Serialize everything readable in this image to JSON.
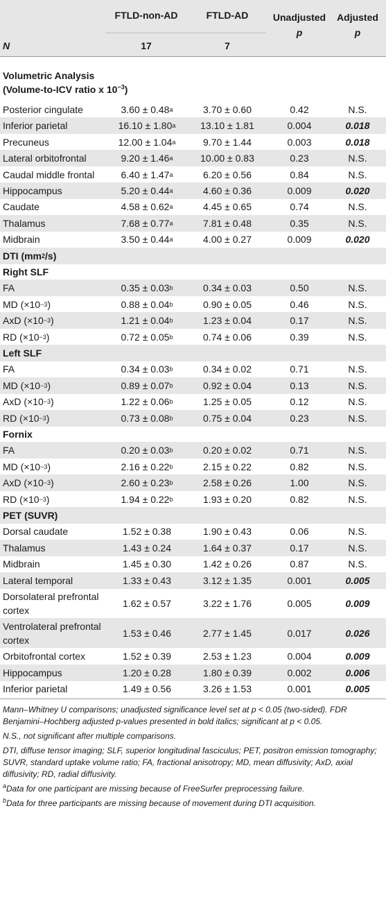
{
  "header": {
    "col1": "FTLD-non-AD",
    "col2": "FTLD-AD",
    "col3_line1": "Unadjusted",
    "col3_line2": "p",
    "col4_line1": "Adjusted",
    "col4_line2": "p",
    "n_label": "N",
    "n1": "17",
    "n2": "7"
  },
  "sections": {
    "vol_title": "Volumetric Analysis",
    "vol_sub_pre": "(Volume-to-ICV ratio x 10",
    "vol_sub_exp": "−3",
    "vol_sub_post": ")",
    "dti_pre": "DTI (mm",
    "dti_exp": "2",
    "dti_post": "/s)",
    "right_slf": "Right SLF",
    "left_slf": "Left SLF",
    "fornix": "Fornix",
    "pet": "PET (SUVR)"
  },
  "rows": [
    {
      "label": "Posterior cingulate",
      "a": "3.60 ± 0.48",
      "a_sup": "a",
      "b": "3.70 ± 0.60",
      "u": "0.42",
      "adj": "N.S."
    },
    {
      "label": "Inferior parietal",
      "a": "16.10 ± 1.80",
      "a_sup": "a",
      "b": "13.10 ± 1.81",
      "u": "0.004",
      "adj": "0.018"
    },
    {
      "label": "Precuneus",
      "a": "12.00 ± 1.04",
      "a_sup": "a",
      "b": "9.70 ± 1.44",
      "u": "0.003",
      "adj": "0.018"
    },
    {
      "label": "Lateral orbitofrontal",
      "a": "9.20 ± 1.46",
      "a_sup": "a",
      "b": "10.00 ± 0.83",
      "u": "0.23",
      "adj": "N.S."
    },
    {
      "label": "Caudal middle frontal",
      "a": "6.40 ± 1.47",
      "a_sup": "a",
      "b": "6.20 ± 0.56",
      "u": "0.84",
      "adj": "N.S."
    },
    {
      "label": "Hippocampus",
      "a": "5.20 ± 0.44",
      "a_sup": "a",
      "b": "4.60 ± 0.36",
      "u": "0.009",
      "adj": "0.020"
    },
    {
      "label": "Caudate",
      "a": "4.58 ± 0.62",
      "a_sup": "a",
      "b": "4.45 ± 0.65",
      "u": "0.74",
      "adj": "N.S."
    },
    {
      "label": "Thalamus",
      "a": "7.68 ± 0.77",
      "a_sup": "a",
      "b": "7.81 ± 0.48",
      "u": "0.35",
      "adj": "N.S."
    },
    {
      "label": "Midbrain",
      "a": "3.50 ± 0.44",
      "a_sup": "a",
      "b": "4.00 ± 0.27",
      "u": "0.009",
      "adj": "0.020"
    },
    {
      "label": "FA",
      "a": "0.35 ± 0.03",
      "a_sup": "b",
      "b": "0.34 ± 0.03",
      "u": "0.50",
      "adj": "N.S."
    },
    {
      "label": "MD (×10",
      "label_exp": "−3",
      "label_post": ")",
      "a": "0.88 ± 0.04",
      "a_sup": "b",
      "b": "0.90 ± 0.05",
      "u": "0.46",
      "adj": "N.S."
    },
    {
      "label": "AxD (×10",
      "label_exp": "−3",
      "label_post": ")",
      "a": "1.21 ± 0.04",
      "a_sup": "b",
      "b": "1.23 ± 0.04",
      "u": "0.17",
      "adj": "N.S."
    },
    {
      "label": "RD (×10",
      "label_exp": "−3",
      "label_post": ")",
      "a": "0.72 ± 0.05",
      "a_sup": "b",
      "b": "0.74 ± 0.06",
      "u": "0.39",
      "adj": "N.S."
    },
    {
      "label": "FA",
      "a": "0.34 ± 0.03",
      "a_sup": "b",
      "b": "0.34 ± 0.02",
      "u": "0.71",
      "adj": "N.S."
    },
    {
      "label": "MD (×10",
      "label_exp": "−3",
      "label_post": ")",
      "a": "0.89 ± 0.07",
      "a_sup": "b",
      "b": "0.92 ± 0.04",
      "u": "0.13",
      "adj": "N.S."
    },
    {
      "label": "AxD (×10",
      "label_exp": "−3",
      "label_post": ")",
      "a": "1.22 ± 0.06",
      "a_sup": "b",
      "b": "1.25 ± 0.05",
      "u": "0.12",
      "adj": "N.S."
    },
    {
      "label": "RD (×10",
      "label_exp": "−3",
      "label_post": ")",
      "a": "0.73 ± 0.08",
      "a_sup": "b",
      "b": "0.75 ± 0.04",
      "u": "0.23",
      "adj": "N.S."
    },
    {
      "label": "FA",
      "a": "0.20 ± 0.03",
      "a_sup": "b",
      "b": "0.20 ± 0.02",
      "u": "0.71",
      "adj": "N.S."
    },
    {
      "label": "MD (×10",
      "label_exp": "−3",
      "label_post": ")",
      "a": "2.16 ± 0.22",
      "a_sup": "b",
      "b": "2.15 ± 0.22",
      "u": "0.82",
      "adj": "N.S."
    },
    {
      "label": "AxD (×10",
      "label_exp": "−3",
      "label_post": ")",
      "a": "2.60 ± 0.23",
      "a_sup": "b",
      "b": "2.58 ± 0.26",
      "u": "1.00",
      "adj": "N.S."
    },
    {
      "label": "RD (×10",
      "label_exp": "−3",
      "label_post": ")",
      "a": "1.94 ± 0.22",
      "a_sup": "b",
      "b": "1.93 ± 0.20",
      "u": "0.82",
      "adj": "N.S."
    },
    {
      "label": "Dorsal caudate",
      "a": "1.52 ± 0.38",
      "b": "1.90 ± 0.43",
      "u": "0.06",
      "adj": "N.S."
    },
    {
      "label": "Thalamus",
      "a": "1.43 ± 0.24",
      "b": "1.64 ± 0.37",
      "u": "0.17",
      "adj": "N.S."
    },
    {
      "label": "Midbrain",
      "a": "1.45 ± 0.30",
      "b": "1.42 ± 0.26",
      "u": "0.87",
      "adj": "N.S."
    },
    {
      "label": "Lateral temporal",
      "a": "1.33 ± 0.43",
      "b": "3.12 ± 1.35",
      "u": "0.001",
      "adj": "0.005"
    },
    {
      "label": "Dorsolateral prefrontal cortex",
      "a": "1.62 ± 0.57",
      "b": "3.22 ± 1.76",
      "u": "0.005",
      "adj": "0.009"
    },
    {
      "label": "Ventrolateral prefrontal cortex",
      "a": "1.53 ± 0.46",
      "b": "2.77 ± 1.45",
      "u": "0.017",
      "adj": "0.026"
    },
    {
      "label": "Orbitofrontal cortex",
      "a": "1.52 ± 0.39",
      "b": "2.53 ± 1.23",
      "u": "0.004",
      "adj": "0.009"
    },
    {
      "label": "Hippocampus",
      "a": "1.20 ± 0.28",
      "b": "1.80 ± 0.39",
      "u": "0.002",
      "adj": "0.006"
    },
    {
      "label": "Inferior parietal",
      "a": "1.49 ± 0.56",
      "b": "3.26 ± 1.53",
      "u": "0.001",
      "adj": "0.005"
    }
  ],
  "notes": {
    "n1": "Mann–Whitney U comparisons; unadjusted significance level set at p < 0.05 (two-sided). FDR Benjamini–Hochberg adjusted p-values presented in bold italics; significant at p < 0.05.",
    "n2": "N.S., not significant after multiple comparisons.",
    "n3": "DTI, diffuse tensor imaging; SLF, superior longitudinal fasciculus; PET, positron emission tomography; SUVR, standard uptake volume ratio; FA, fractional anisotropy; MD, mean diffusivity; AxD, axial diffusivity; RD, radial diffusivity.",
    "fa_sup": "a",
    "fa": "Data for one participant are missing because of FreeSurfer preprocessing failure.",
    "fb_sup": "b",
    "fb": "Data for three participants are missing because of movement during DTI acquisition."
  }
}
